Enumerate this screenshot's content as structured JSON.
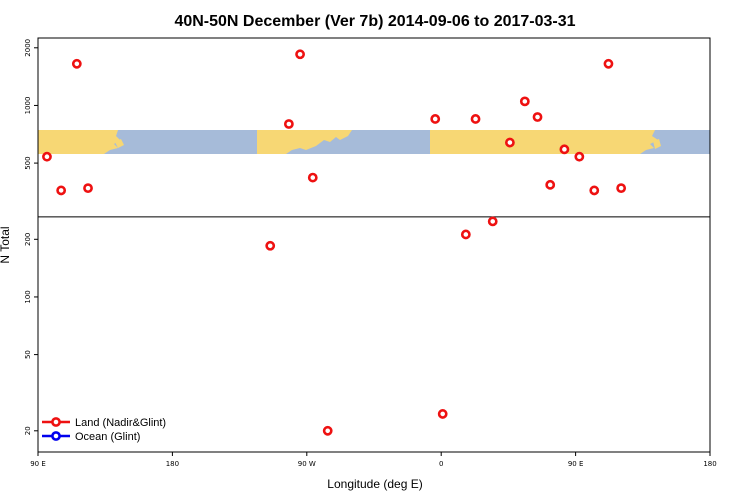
{
  "chart_data": {
    "type": "scatter",
    "title": "40N-50N December (Ver 7b)   2014-09-06 to 2017-03-31",
    "xlabel": "Longitude (deg E)",
    "ylabel": "N Total",
    "x_axis": {
      "min": 90,
      "max": 540,
      "ticks": [
        {
          "value": 90,
          "label": "90 E"
        },
        {
          "value": 180,
          "label": "180"
        },
        {
          "value": 270,
          "label": "90 W"
        },
        {
          "value": 360,
          "label": "0"
        },
        {
          "value": 450,
          "label": "90 E"
        },
        {
          "value": 540,
          "label": "180"
        }
      ]
    },
    "y_axis": {
      "scale": "log",
      "min": 15.5,
      "max": 2250,
      "ticks": [
        {
          "value": 20,
          "label": "20"
        },
        {
          "value": 50,
          "label": "50"
        },
        {
          "value": 100,
          "label": "100"
        },
        {
          "value": 200,
          "label": "200"
        },
        {
          "value": 500,
          "label": "500"
        },
        {
          "value": 1000,
          "label": "1000"
        },
        {
          "value": 2000,
          "label": "2000"
        }
      ]
    },
    "divider_y": 262,
    "map_strip_lat_band": "40N-50N",
    "colors": {
      "land_marker": "#ee1111",
      "ocean_marker": "#0000ee",
      "map_land": "#f7d774",
      "map_ocean": "#a6bbd9"
    },
    "series": [
      {
        "name": "Land (Nadir&Glint)",
        "color": "#ee1111",
        "points": [
          {
            "x": 96,
            "y": 540
          },
          {
            "x": 105.5,
            "y": 360
          },
          {
            "x": 116,
            "y": 1650
          },
          {
            "x": 123.5,
            "y": 370
          },
          {
            "x": 245.5,
            "y": 185
          },
          {
            "x": 258,
            "y": 800
          },
          {
            "x": 265.5,
            "y": 1850
          },
          {
            "x": 274,
            "y": 420
          },
          {
            "x": 284,
            "y": 20
          },
          {
            "x": 356,
            "y": 850
          },
          {
            "x": 361,
            "y": 24.5
          },
          {
            "x": 376.5,
            "y": 212
          },
          {
            "x": 383,
            "y": 850
          },
          {
            "x": 394.5,
            "y": 248
          },
          {
            "x": 406,
            "y": 640
          },
          {
            "x": 416,
            "y": 1050
          },
          {
            "x": 424.5,
            "y": 870
          },
          {
            "x": 433,
            "y": 385
          },
          {
            "x": 442.5,
            "y": 590
          },
          {
            "x": 452.5,
            "y": 540
          },
          {
            "x": 462.5,
            "y": 360
          },
          {
            "x": 472,
            "y": 1650
          },
          {
            "x": 480.5,
            "y": 370
          }
        ]
      },
      {
        "name": "Ocean (Glint)",
        "color": "#0000ee",
        "points": []
      }
    ],
    "legend": {
      "position": "bottom-left",
      "entries": [
        {
          "label": "Land (Nadir&Glint)",
          "color": "#ee1111"
        },
        {
          "label": "Ocean (Glint)",
          "color": "#0000ee"
        }
      ]
    }
  }
}
